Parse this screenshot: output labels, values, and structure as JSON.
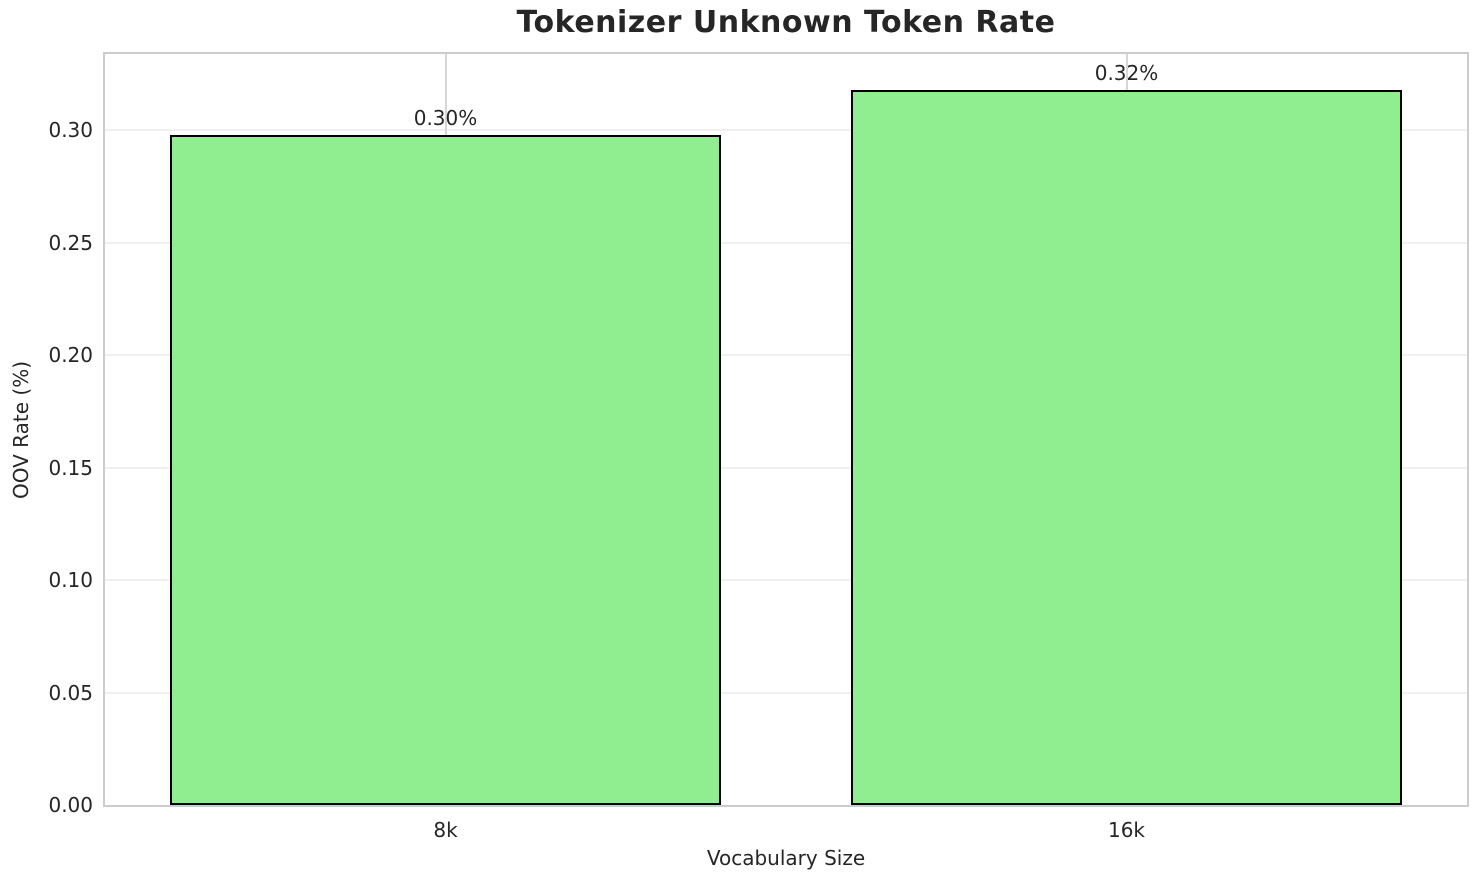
{
  "chart_data": {
    "type": "bar",
    "title": "Tokenizer Unknown Token Rate",
    "xlabel": "Vocabulary Size",
    "ylabel": "OOV Rate (%)",
    "categories": [
      "8k",
      "16k"
    ],
    "values": [
      0.298,
      0.318
    ],
    "bar_labels": [
      "0.30%",
      "0.32%"
    ],
    "yticks": [
      0,
      0.05,
      0.1,
      0.15,
      0.2,
      0.25,
      0.3
    ],
    "ytick_labels": [
      "0.00",
      "0.05",
      "0.10",
      "0.15",
      "0.20",
      "0.25",
      "0.30"
    ],
    "ylim": [
      0,
      0.334
    ],
    "grid": true,
    "legend_visible": false,
    "bar_width_fraction": 0.81,
    "colors": {
      "bar_fill": "#90EE90",
      "bar_edge": "#000000",
      "grid_horizontal": "#f0f0f0",
      "grid_vertical": "#d6d6d6",
      "spine": "#cccccc",
      "text": "#262626",
      "background": "#ffffff"
    }
  }
}
